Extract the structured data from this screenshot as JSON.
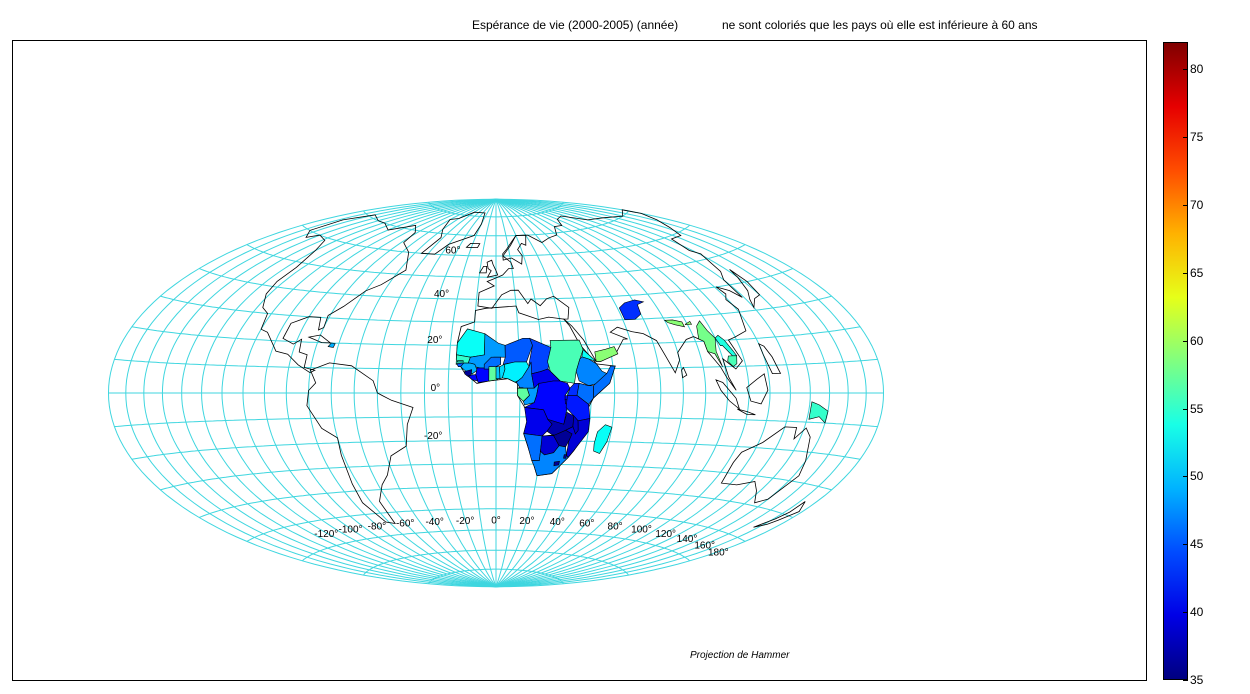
{
  "title": "Espérance de vie (2000-2005) (année)",
  "subtitle": "ne sont coloriés que les pays où elle est inférieure à 60 ans",
  "projection_label": "Projection de Hammer",
  "colors": {
    "graticule": "#3fd6df",
    "border": "#000000",
    "background": "#ffffff"
  },
  "colormap": "jet",
  "latitude_labels": [
    {
      "lat": 60,
      "text": "60°"
    },
    {
      "lat": 40,
      "text": "40°"
    },
    {
      "lat": 20,
      "text": "20°"
    },
    {
      "lat": 0,
      "text": "0°"
    },
    {
      "lat": -20,
      "text": "-20°"
    }
  ],
  "longitude_labels": [
    {
      "lon": -120,
      "text": "-120°"
    },
    {
      "lon": -100,
      "text": "-100°"
    },
    {
      "lon": -80,
      "text": "-80°"
    },
    {
      "lon": -60,
      "text": "-60°"
    },
    {
      "lon": -40,
      "text": "-40°"
    },
    {
      "lon": -20,
      "text": "-20°"
    },
    {
      "lon": 0,
      "text": "0°"
    },
    {
      "lon": 20,
      "text": "20°"
    },
    {
      "lon": 40,
      "text": "40°"
    },
    {
      "lon": 60,
      "text": "60°"
    },
    {
      "lon": 80,
      "text": "80°"
    },
    {
      "lon": 100,
      "text": "100°"
    },
    {
      "lon": 120,
      "text": "120°"
    },
    {
      "lon": 140,
      "text": "140°"
    },
    {
      "lon": 160,
      "text": "160°"
    },
    {
      "lon": 180,
      "text": "180°"
    }
  ],
  "colorbar": {
    "min": 35,
    "max": 82,
    "ticks": [
      "35",
      "40",
      "45",
      "50",
      "55",
      "60",
      "65",
      "70",
      "75",
      "80"
    ]
  },
  "chart_data": {
    "type": "choropleth",
    "value_label": "Espérance de vie (année)",
    "threshold_note": "only countries below 60 years are coloured",
    "regions": [
      {
        "name": "Mauritania",
        "value": 53
      },
      {
        "name": "Senegal",
        "value": 55
      },
      {
        "name": "Gambia",
        "value": 54
      },
      {
        "name": "Mali",
        "value": 48
      },
      {
        "name": "Niger",
        "value": 45
      },
      {
        "name": "Chad",
        "value": 44
      },
      {
        "name": "Sudan",
        "value": 56
      },
      {
        "name": "Eritrea",
        "value": 53
      },
      {
        "name": "Ethiopia",
        "value": 47
      },
      {
        "name": "Somalia",
        "value": 46
      },
      {
        "name": "Yemen",
        "value": 59
      },
      {
        "name": "Afghanistan",
        "value": 43
      },
      {
        "name": "Nepal",
        "value": 59
      },
      {
        "name": "Bhutan",
        "value": 59
      },
      {
        "name": "Myanmar",
        "value": 58
      },
      {
        "name": "Laos",
        "value": 54
      },
      {
        "name": "Cambodia",
        "value": 56
      },
      {
        "name": "Papua New Guinea",
        "value": 55
      },
      {
        "name": "Haiti",
        "value": 49
      },
      {
        "name": "Guinea-Bissau",
        "value": 45
      },
      {
        "name": "Guinea",
        "value": 49
      },
      {
        "name": "Sierra Leone",
        "value": 36
      },
      {
        "name": "Liberia",
        "value": 41
      },
      {
        "name": "Côte d'Ivoire",
        "value": 41
      },
      {
        "name": "Burkina Faso",
        "value": 46
      },
      {
        "name": "Ghana",
        "value": 57
      },
      {
        "name": "Togo",
        "value": 50
      },
      {
        "name": "Benin",
        "value": 51
      },
      {
        "name": "Nigeria",
        "value": 52
      },
      {
        "name": "Cameroon",
        "value": 47
      },
      {
        "name": "Central African Republic",
        "value": 40
      },
      {
        "name": "Equatorial Guinea",
        "value": 43
      },
      {
        "name": "Gabon",
        "value": 57
      },
      {
        "name": "Congo",
        "value": 48
      },
      {
        "name": "DR Congo",
        "value": 41
      },
      {
        "name": "Uganda",
        "value": 43
      },
      {
        "name": "Kenya",
        "value": 46
      },
      {
        "name": "Rwanda",
        "value": 41
      },
      {
        "name": "Burundi",
        "value": 41
      },
      {
        "name": "Tanzania",
        "value": 42
      },
      {
        "name": "Angola",
        "value": 40
      },
      {
        "name": "Zambia",
        "value": 37
      },
      {
        "name": "Malawi",
        "value": 38
      },
      {
        "name": "Mozambique",
        "value": 39
      },
      {
        "name": "Zimbabwe",
        "value": 36
      },
      {
        "name": "Namibia",
        "value": 46
      },
      {
        "name": "Botswana",
        "value": 39
      },
      {
        "name": "South Africa",
        "value": 47
      },
      {
        "name": "Lesotho",
        "value": 36
      },
      {
        "name": "Swaziland",
        "value": 36
      },
      {
        "name": "Madagascar",
        "value": 53
      }
    ]
  }
}
